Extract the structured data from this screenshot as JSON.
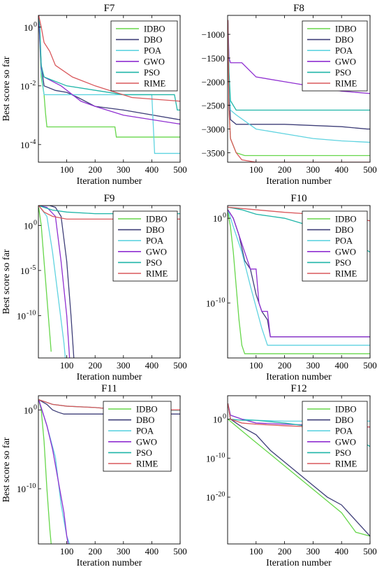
{
  "legend_labels": [
    "IDBO",
    "DBO",
    "POA",
    "GWO",
    "PSO",
    "RIME"
  ],
  "colors": {
    "IDBO": "#66d64a",
    "DBO": "#3e3e78",
    "POA": "#5fd3e0",
    "GWO": "#8f2fd1",
    "PSO": "#1fb5a8",
    "RIME": "#d9585c"
  },
  "chart_data": [
    {
      "type": "line",
      "title": "F7",
      "xlabel": "Iteration number",
      "ylabel": "Best score so far",
      "xlim": [
        0,
        500
      ],
      "xticks": [
        100,
        200,
        300,
        400,
        500
      ],
      "yscale": "log",
      "ylim_exp": [
        -4.6,
        0.4
      ],
      "ytick_labels": [
        {
          "e": 0,
          "label": "10",
          "sup": "0"
        },
        {
          "e": -2,
          "label": "10",
          "sup": "-2"
        },
        {
          "e": -4,
          "label": "10",
          "sup": "-4"
        }
      ],
      "legend": "top-right",
      "series": [
        {
          "name": "IDBO",
          "x": [
            1,
            10,
            20,
            25,
            30,
            270,
            275,
            500
          ],
          "y": [
            5,
            0.02,
            0.005,
            0.0012,
            0.0004,
            0.0004,
            0.00018,
            0.00018
          ]
        },
        {
          "name": "DBO",
          "x": [
            1,
            10,
            20,
            60,
            100,
            140,
            200,
            300,
            500
          ],
          "y": [
            5,
            0.05,
            0.01,
            0.007,
            0.006,
            0.004,
            0.002,
            0.0015,
            0.0007
          ]
        },
        {
          "name": "POA",
          "x": [
            1,
            10,
            20,
            400,
            410,
            500
          ],
          "y": [
            5,
            0.03,
            0.005,
            0.005,
            5e-05,
            5e-05
          ]
        },
        {
          "name": "GWO",
          "x": [
            1,
            10,
            20,
            80,
            120,
            150,
            200,
            300,
            500
          ],
          "y": [
            5,
            0.04,
            0.02,
            0.01,
            0.005,
            0.003,
            0.002,
            0.001,
            0.0005
          ]
        },
        {
          "name": "PSO",
          "x": [
            1,
            5,
            10,
            20,
            100,
            300,
            480,
            490,
            500
          ],
          "y": [
            10,
            1,
            0.05,
            0.02,
            0.01,
            0.005,
            0.005,
            0.0015,
            0.0015
          ]
        },
        {
          "name": "RIME",
          "x": [
            1,
            10,
            20,
            40,
            60,
            120,
            200,
            330,
            500
          ],
          "y": [
            5,
            1,
            0.3,
            0.15,
            0.05,
            0.02,
            0.01,
            0.004,
            0.003
          ]
        }
      ]
    },
    {
      "type": "line",
      "title": "F8",
      "xlabel": "Iteration number",
      "ylabel": "",
      "xlim": [
        0,
        500
      ],
      "xticks": [
        100,
        200,
        300,
        400,
        500
      ],
      "yscale": "linear",
      "ylim": [
        -3700,
        -600
      ],
      "yticks": [
        -1000,
        -1500,
        -2000,
        -2500,
        -3000,
        -3500
      ],
      "legend": "top-right",
      "series": [
        {
          "name": "IDBO",
          "x": [
            1,
            5,
            10,
            30,
            60,
            500
          ],
          "y": [
            -700,
            -2600,
            -3200,
            -3500,
            -3560,
            -3560
          ]
        },
        {
          "name": "DBO",
          "x": [
            1,
            5,
            10,
            30,
            200,
            400,
            490,
            500
          ],
          "y": [
            -700,
            -2200,
            -2800,
            -2900,
            -2900,
            -2950,
            -3000,
            -3000
          ]
        },
        {
          "name": "POA",
          "x": [
            1,
            5,
            10,
            30,
            100,
            200,
            300,
            400,
            500
          ],
          "y": [
            -700,
            -2000,
            -2600,
            -2700,
            -3000,
            -3100,
            -3200,
            -3250,
            -3280
          ]
        },
        {
          "name": "GWO",
          "x": [
            1,
            5,
            10,
            50,
            100,
            200,
            300,
            400,
            500
          ],
          "y": [
            -700,
            -1500,
            -1600,
            -1600,
            -1900,
            -2000,
            -2100,
            -2200,
            -2250
          ]
        },
        {
          "name": "PSO",
          "x": [
            1,
            5,
            10,
            30,
            500
          ],
          "y": [
            -700,
            -1800,
            -2400,
            -2600,
            -2600
          ]
        },
        {
          "name": "RIME",
          "x": [
            1,
            5,
            10,
            30,
            50,
            100,
            500
          ],
          "y": [
            -700,
            -2600,
            -3200,
            -3500,
            -3650,
            -3700,
            -3700
          ]
        }
      ]
    },
    {
      "type": "line",
      "title": "F9",
      "xlabel": "Iteration number",
      "ylabel": "Best score so far",
      "xlim": [
        0,
        500
      ],
      "xticks": [
        100,
        200,
        300,
        400,
        500
      ],
      "yscale": "log",
      "ylim_exp": [
        -14.7,
        2.2
      ],
      "ytick_labels": [
        {
          "e": 0,
          "label": "10",
          "sup": "0"
        },
        {
          "e": -5,
          "label": "10",
          "sup": "-5"
        },
        {
          "e": -10,
          "label": "10",
          "sup": "-10"
        }
      ],
      "legend": "top-right",
      "series": [
        {
          "name": "IDBO",
          "x": [
            1,
            10,
            20,
            30,
            40,
            45
          ],
          "y": [
            100,
            1,
            0.0001,
            1e-08,
            1e-12,
            1e-14
          ]
        },
        {
          "name": "DBO",
          "x": [
            1,
            40,
            60,
            80,
            100,
            115,
            125
          ],
          "y": [
            300,
            200,
            100,
            10,
            0.0001,
            1e-10,
            1e-15
          ]
        },
        {
          "name": "POA",
          "x": [
            1,
            30,
            50,
            70,
            90,
            95
          ],
          "y": [
            200,
            10,
            0.001,
            1e-08,
            1e-13,
            1e-15
          ]
        },
        {
          "name": "GWO",
          "x": [
            1,
            30,
            60,
            80,
            100,
            110
          ],
          "y": [
            300,
            100,
            10,
            0.0001,
            1e-10,
            1e-15
          ]
        },
        {
          "name": "PSO",
          "x": [
            1,
            20,
            50,
            100,
            200,
            500
          ],
          "y": [
            300,
            100,
            50,
            30,
            20,
            20
          ]
        },
        {
          "name": "RIME",
          "x": [
            1,
            20,
            50,
            100,
            150,
            500
          ],
          "y": [
            300,
            30,
            10,
            5,
            5,
            5
          ]
        }
      ]
    },
    {
      "type": "line",
      "title": "F10",
      "xlabel": "Iteration number",
      "ylabel": "",
      "xlim": [
        0,
        500
      ],
      "xticks": [
        100,
        200,
        300,
        400,
        500
      ],
      "yscale": "log",
      "ylim_exp": [
        -16.5,
        1.5
      ],
      "ytick_labels": [
        {
          "e": 0,
          "label": "10",
          "sup": "0"
        },
        {
          "e": -10,
          "label": "10",
          "sup": "-10"
        }
      ],
      "legend": "top-right",
      "series": [
        {
          "name": "IDBO",
          "x": [
            1,
            10,
            20,
            30,
            40,
            50,
            60,
            500
          ],
          "y": [
            5,
            0.1,
            0.0001,
            1e-08,
            1e-12,
            1e-15,
            1e-16,
            1e-16
          ]
        },
        {
          "name": "DBO",
          "x": [
            1,
            20,
            40,
            60,
            80,
            100,
            120,
            140,
            150,
            500
          ],
          "y": [
            10,
            1,
            0.01,
            1e-05,
            1e-06,
            1e-09,
            1e-11,
            1e-12,
            1e-14,
            1e-14
          ]
        },
        {
          "name": "POA",
          "x": [
            1,
            20,
            50,
            80,
            120,
            140,
            500
          ],
          "y": [
            10,
            0.1,
            0.0001,
            1e-08,
            1e-13,
            1e-15,
            1e-15
          ]
        },
        {
          "name": "GWO",
          "x": [
            1,
            20,
            40,
            60,
            80,
            100,
            110,
            120,
            140,
            150,
            500
          ],
          "y": [
            10,
            1,
            0.01,
            0.0001,
            1e-06,
            1e-06,
            1e-10,
            1e-11,
            1e-11,
            1e-14,
            1e-14
          ]
        },
        {
          "name": "PSO",
          "x": [
            1,
            50,
            100,
            200,
            300,
            400,
            450,
            500
          ],
          "y": [
            20,
            10,
            3,
            1,
            0.1,
            0.01,
            0.001,
            0.0001
          ]
        },
        {
          "name": "RIME",
          "x": [
            1,
            100,
            200,
            300,
            400,
            450,
            500
          ],
          "y": [
            20,
            10,
            5,
            3,
            1,
            1,
            0.5
          ]
        }
      ]
    },
    {
      "type": "line",
      "title": "F11",
      "xlabel": "Iteration number",
      "ylabel": "Best score so far",
      "xlim": [
        0,
        500
      ],
      "xticks": [
        100,
        200,
        300,
        400,
        500
      ],
      "yscale": "log",
      "ylim_exp": [
        -17,
        1.8
      ],
      "ytick_labels": [
        {
          "e": 0,
          "label": "10",
          "sup": "0"
        },
        {
          "e": -10,
          "label": "10",
          "sup": "-10"
        }
      ],
      "legend": "top-right",
      "series": [
        {
          "name": "IDBO",
          "x": [
            1,
            10,
            20,
            30,
            40,
            45
          ],
          "y": [
            20,
            1,
            0.0001,
            1e-10,
            1e-15,
            1e-17
          ]
        },
        {
          "name": "DBO",
          "x": [
            1,
            30,
            50,
            70,
            90,
            100,
            500
          ],
          "y": [
            20,
            5,
            1,
            0.5,
            0.3,
            0.3,
            0.3
          ]
        },
        {
          "name": "POA",
          "x": [
            1,
            30,
            60,
            80,
            100,
            110
          ],
          "y": [
            20,
            0.01,
            1e-06,
            1e-12,
            1e-16,
            1e-17
          ]
        },
        {
          "name": "GWO",
          "x": [
            1,
            30,
            50,
            70,
            90,
            100,
            105
          ],
          "y": [
            20,
            0.01,
            1e-05,
            1e-09,
            1e-13,
            1e-16,
            1e-17
          ]
        },
        {
          "name": "PSO",
          "x": [
            1,
            50,
            100,
            200,
            300,
            500
          ],
          "y": [
            20,
            5,
            3,
            2,
            1,
            0.9
          ]
        },
        {
          "name": "RIME",
          "x": [
            1,
            50,
            100,
            200,
            300,
            500
          ],
          "y": [
            20,
            5,
            3,
            2,
            1,
            1
          ]
        }
      ]
    },
    {
      "type": "line",
      "title": "F12",
      "xlabel": "Iteration number",
      "ylabel": "",
      "xlim": [
        0,
        500
      ],
      "xticks": [
        100,
        200,
        300,
        400,
        500
      ],
      "yscale": "log",
      "ylim_exp": [
        -32,
        6
      ],
      "ytick_labels": [
        {
          "e": 0,
          "label": "10",
          "sup": "0"
        },
        {
          "e": -10,
          "label": "10",
          "sup": "-10"
        },
        {
          "e": -20,
          "label": "10",
          "sup": "-20"
        }
      ],
      "legend": "top-right",
      "series": [
        {
          "name": "IDBO",
          "x": [
            1,
            50,
            100,
            150,
            200,
            250,
            300,
            350,
            400,
            450,
            500
          ],
          "y": [
            1,
            0.001,
            1e-06,
            1e-09,
            1e-12,
            1e-15,
            1e-18,
            1e-21,
            1e-24,
            1e-29,
            1e-30
          ]
        },
        {
          "name": "DBO",
          "x": [
            1,
            10,
            50,
            100,
            150,
            200,
            250,
            300,
            350,
            400,
            450,
            500
          ],
          "y": [
            10000.0,
            1,
            0.01,
            0.0001,
            1e-08,
            1e-11,
            1e-14,
            1e-17,
            1e-20,
            1e-22,
            1e-26,
            1e-30
          ]
        },
        {
          "name": "POA",
          "x": [
            1,
            10,
            50,
            100,
            200,
            300,
            500
          ],
          "y": [
            10000.0,
            10,
            1,
            0.5,
            0.3,
            0.3,
            0.3
          ]
        },
        {
          "name": "GWO",
          "x": [
            1,
            10,
            50,
            100,
            200,
            300,
            400,
            450,
            500
          ],
          "y": [
            10000.0,
            10,
            1,
            0.1,
            0.05,
            0.03,
            0.02,
            0.01,
            0.01
          ]
        },
        {
          "name": "PSO",
          "x": [
            1,
            10,
            50,
            100,
            200,
            300,
            400,
            500
          ],
          "y": [
            10000.0,
            1,
            0.5,
            0.5,
            0.1,
            0.01,
            0.001,
            1e-07
          ]
        },
        {
          "name": "RIME",
          "x": [
            1,
            10,
            50,
            100,
            200,
            300,
            400,
            500
          ],
          "y": [
            10000.0,
            1,
            0.1,
            0.05,
            0.02,
            0.01,
            0.01,
            0.01
          ]
        }
      ]
    }
  ]
}
